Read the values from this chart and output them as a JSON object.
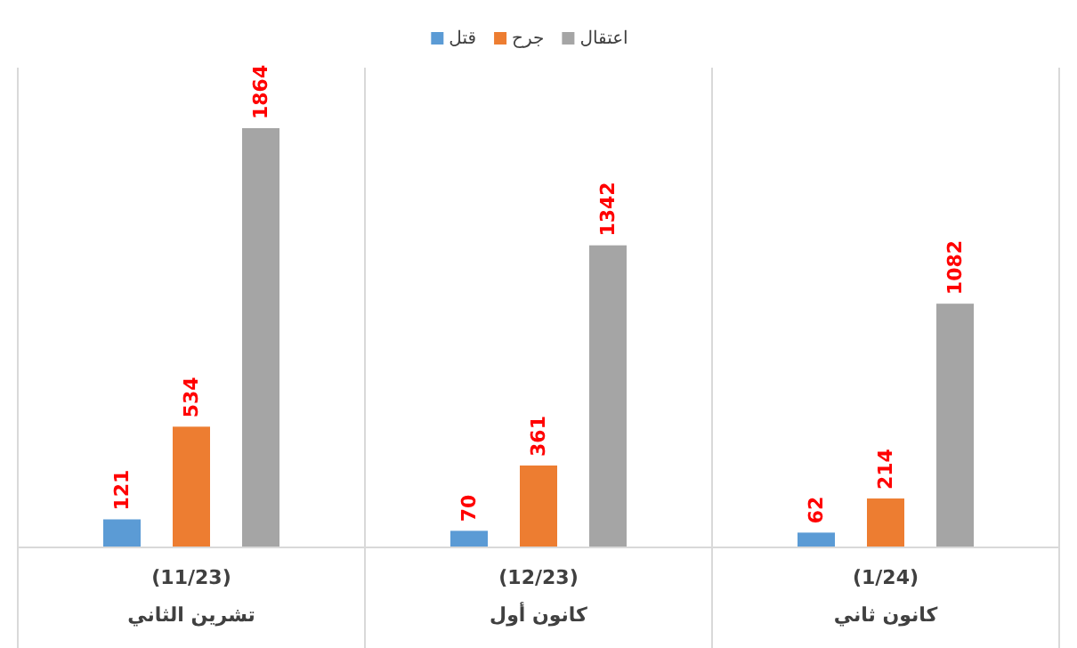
{
  "chart_data": {
    "type": "bar",
    "categories": [
      "(11/23)\nتشرين الثاني",
      "(12/23)\nكانون أول",
      "(1/24)\nكانون ثاني"
    ],
    "series": [
      {
        "name": "قتل",
        "color": "#5b9bd5",
        "values": [
          121,
          70,
          62
        ]
      },
      {
        "name": "جرح",
        "color": "#ed7d31",
        "values": [
          534,
          361,
          214
        ]
      },
      {
        "name": "اعتقال",
        "color": "#a5a5a5",
        "values": [
          1864,
          1342,
          1082
        ]
      }
    ],
    "data_labels": true,
    "legend": "top"
  }
}
